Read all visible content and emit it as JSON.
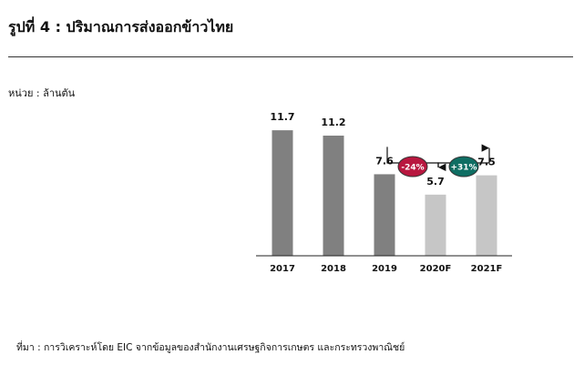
{
  "title": "รูปที่ 4 : ปริมาณการส่งออกข้าวไทย",
  "unit_label": "หน่วย : ล้านตัน",
  "source": "ที่มา : การวิเคราะห์โดย EIC จากข้อมูลของสำนักงานเศรษฐกิจการเกษตร และกระทรวงพาณิชย์",
  "chart_data": {
    "type": "bar",
    "categories": [
      "2017",
      "2018",
      "2019",
      "2020F",
      "2021F"
    ],
    "values": [
      11.7,
      11.2,
      7.6,
      5.7,
      7.5
    ],
    "value_labels": [
      "11.7",
      "11.2",
      "7.6",
      "5.7",
      "7.5"
    ],
    "ylim": [
      0,
      14
    ],
    "grid": false,
    "bar_colors": [
      "#808080",
      "#808080",
      "#808080",
      "#c6c6c6",
      "#c6c6c6"
    ],
    "annotations": [
      {
        "from": "2019",
        "to": "2020F",
        "label": "-24%",
        "color": "#b8173f"
      },
      {
        "from": "2020F",
        "to": "2021F",
        "label": "+31%",
        "color": "#0f6e63"
      }
    ]
  }
}
